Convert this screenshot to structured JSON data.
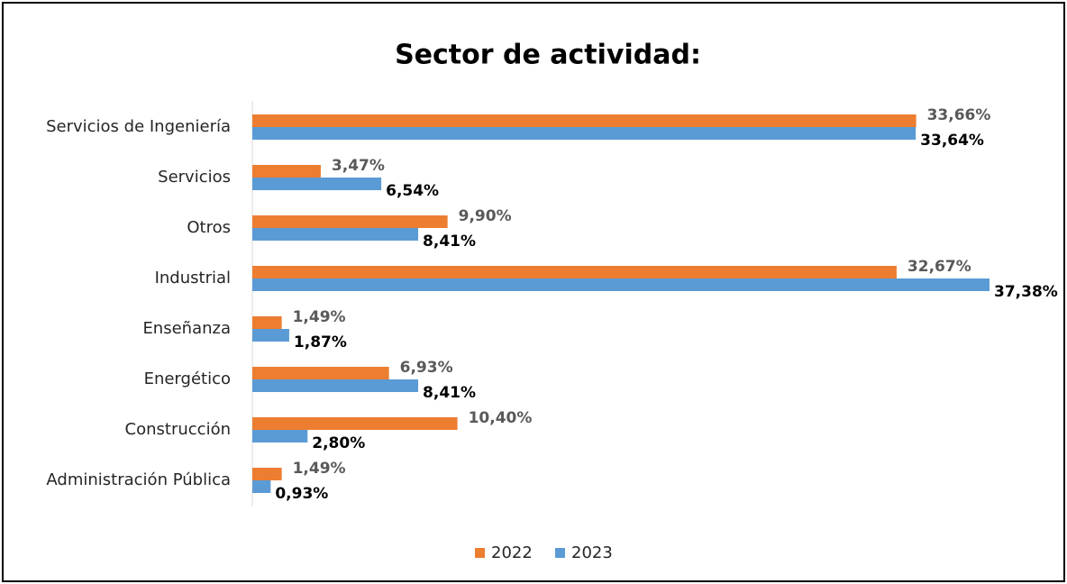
{
  "chart_data": {
    "type": "hbar",
    "title": "Sector de actividad:",
    "categories": [
      "Servicios de Ingeniería",
      "Servicios",
      "Otros",
      "Industrial",
      "Enseñanza",
      "Energético",
      "Construcción",
      "Administración Pública"
    ],
    "series": [
      {
        "name": "2022",
        "color": "#ed7d31",
        "values": [
          33.66,
          3.47,
          9.9,
          32.67,
          1.49,
          6.93,
          10.4,
          1.49
        ],
        "value_labels": [
          "33,66%",
          "3,47%",
          "9,90%",
          "32,67%",
          "1,49%",
          "6,93%",
          "10,40%",
          "1,49%"
        ]
      },
      {
        "name": "2023",
        "color": "#5b9bd5",
        "values": [
          33.64,
          6.54,
          8.41,
          37.38,
          1.87,
          8.41,
          2.8,
          0.93
        ],
        "value_labels": [
          "33,64%",
          "6,54%",
          "8,41%",
          "37,38%",
          "1,87%",
          "8,41%",
          "2,80%",
          "0,93%"
        ]
      }
    ],
    "legend": "bottom"
  }
}
